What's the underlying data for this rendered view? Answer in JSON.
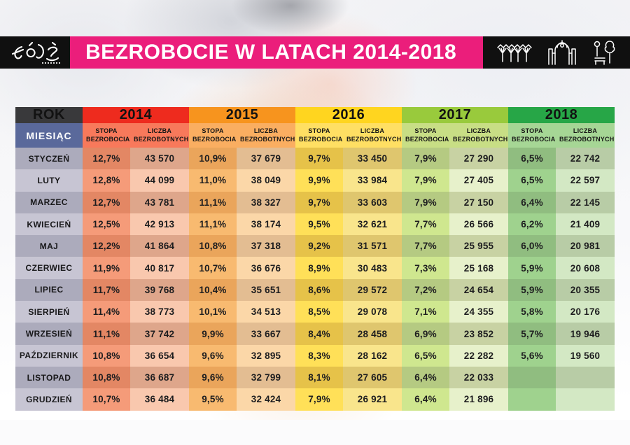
{
  "header": {
    "logo_text": "Łódź",
    "logo_box_color": "#101010",
    "title": "BEZROBOCIE W LATACH 2014-2018",
    "title_bar_color": "#EB1E7B",
    "icons": [
      "viaduct-icon",
      "gate-icon",
      "park-icon"
    ]
  },
  "table": {
    "rok_label": "ROK",
    "miesiac_label": "MIESIĄC",
    "rate_header": "STOPA BEZROBOCIA",
    "count_header": "LICZBA BEZROBOTNYCH",
    "rok_bg": "#39393B",
    "miesiac_bg": "#5A699B",
    "month_colors": {
      "odd": "#ACABBC",
      "even": "#C7C5D3"
    },
    "year_styles": [
      {
        "band": "#EE2B1E",
        "sub": "#F8795B",
        "stopa_odd": "#E38764",
        "stopa_even": "#F59B79",
        "liczba_odd": "#DEA68B",
        "liczba_even": "#F9C8AE"
      },
      {
        "band": "#F7941E",
        "sub": "#FAAE61",
        "stopa_odd": "#EAA55B",
        "stopa_even": "#F8BA70",
        "liczba_odd": "#E3BD92",
        "liczba_even": "#FBD7A8"
      },
      {
        "band": "#FFD51F",
        "sub": "#FFDF63",
        "stopa_odd": "#E6C249",
        "stopa_even": "#FFE058",
        "liczba_odd": "#DFC66E",
        "liczba_even": "#F9E58C"
      },
      {
        "band": "#99CA3C",
        "sub": "#C8DE85",
        "stopa_odd": "#B5CA82",
        "stopa_even": "#CFE78F",
        "liczba_odd": "#C8D2A3",
        "liczba_even": "#E7F1CB"
      },
      {
        "band": "#27A647",
        "sub": "#A6D695",
        "stopa_odd": "#90BD80",
        "stopa_even": "#9FD28E",
        "liczba_odd": "#B8CCA6",
        "liczba_even": "#D3E8C4"
      }
    ]
  },
  "chart_data": {
    "type": "table",
    "title": "BEZROBOCIE W LATACH 2014-2018",
    "col_header": "ROK",
    "row_header": "MIESIĄC",
    "categories": [
      "STYCZEŃ",
      "LUTY",
      "MARZEC",
      "KWIECIEŃ",
      "MAJ",
      "CZERWIEC",
      "LIPIEC",
      "SIERPIEŃ",
      "WRZESIEŃ",
      "PAŹDZIERNIK",
      "LISTOPAD",
      "GRUDZIEŃ"
    ],
    "series": [
      {
        "year": "2014",
        "stopa_bezrobocia": [
          "12,7%",
          "12,8%",
          "12,7%",
          "12,5%",
          "12,2%",
          "11,9%",
          "11,7%",
          "11,4%",
          "11,1%",
          "10,8%",
          "10,8%",
          "10,7%"
        ],
        "liczba_bezrobotnych": [
          "43 570",
          "44 099",
          "43 781",
          "42 913",
          "41 864",
          "40 817",
          "39 768",
          "38 773",
          "37 742",
          "36 654",
          "36 687",
          "36 484"
        ]
      },
      {
        "year": "2015",
        "stopa_bezrobocia": [
          "10,9%",
          "11,0%",
          "11,1%",
          "11,1%",
          "10,8%",
          "10,7%",
          "10,4%",
          "10,1%",
          "9,9%",
          "9,6%",
          "9,6%",
          "9,5%"
        ],
        "liczba_bezrobotnych": [
          "37 679",
          "38 049",
          "38 327",
          "38 174",
          "37 318",
          "36 676",
          "35 651",
          "34 513",
          "33 667",
          "32 895",
          "32 799",
          "32 424"
        ]
      },
      {
        "year": "2016",
        "stopa_bezrobocia": [
          "9,7%",
          "9,9%",
          "9,7%",
          "9,5%",
          "9,2%",
          "8,9%",
          "8,6%",
          "8,5%",
          "8,4%",
          "8,3%",
          "8,1%",
          "7,9%"
        ],
        "liczba_bezrobotnych": [
          "33 450",
          "33 984",
          "33 603",
          "32 621",
          "31 571",
          "30 483",
          "29 572",
          "29 078",
          "28 458",
          "28 162",
          "27 605",
          "26 921"
        ]
      },
      {
        "year": "2017",
        "stopa_bezrobocia": [
          "7,9%",
          "7,9%",
          "7,9%",
          "7,7%",
          "7,7%",
          "7,3%",
          "7,2%",
          "7,1%",
          "6,9%",
          "6,5%",
          "6,4%",
          "6,4%"
        ],
        "liczba_bezrobotnych": [
          "27 290",
          "27 405",
          "27 150",
          "26 566",
          "25 955",
          "25 168",
          "24 654",
          "24 355",
          "23 852",
          "22 282",
          "22 033",
          "21 896"
        ]
      },
      {
        "year": "2018",
        "stopa_bezrobocia": [
          "6,5%",
          "6,5%",
          "6,4%",
          "6,2%",
          "6,0%",
          "5,9%",
          "5,9%",
          "5,8%",
          "5,7%",
          "5,6%",
          "",
          ""
        ],
        "liczba_bezrobotnych": [
          "22 742",
          "22 597",
          "22 145",
          "21 409",
          "20 981",
          "20 608",
          "20 355",
          "20 176",
          "19 946",
          "19 560",
          "",
          ""
        ]
      }
    ]
  }
}
